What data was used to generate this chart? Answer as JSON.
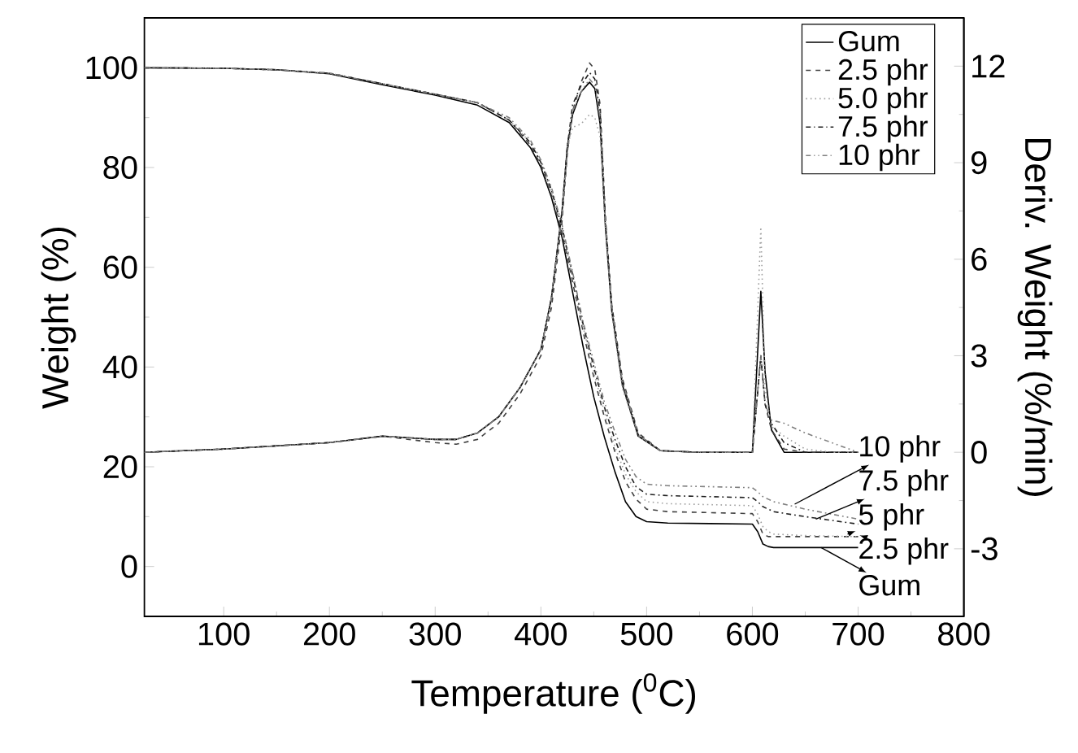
{
  "chart_data": {
    "type": "line",
    "xlabel": "Temperature ($^{0}$C)",
    "ylabel": "Weight (%)",
    "y2label": "Deriv. Weight (%/min)",
    "xlim": [
      25,
      800
    ],
    "xticks": [
      100,
      200,
      300,
      400,
      500,
      600,
      700,
      800
    ],
    "ylim": [
      -10,
      110
    ],
    "yticks": [
      0,
      20,
      40,
      60,
      80,
      100
    ],
    "y2lim": [
      -5.1,
      13.5
    ],
    "y2ticks": [
      -3,
      0,
      3,
      6,
      9,
      12
    ],
    "legend": "top right",
    "marker": "none",
    "series": [
      {
        "name": "Gum",
        "color": "#000000",
        "line_style": "solid",
        "x": [
          25,
          100,
          150,
          200,
          250,
          300,
          340,
          370,
          390,
          400,
          410,
          420,
          430,
          440,
          450,
          460,
          470,
          480,
          490,
          500,
          520,
          560,
          600,
          605,
          610,
          615,
          620,
          650,
          700
        ],
        "values": [
          100,
          99.9,
          99.6,
          98.8,
          96.6,
          94.5,
          92.5,
          89,
          84,
          80,
          74,
          66,
          55,
          44,
          34,
          26,
          19,
          13,
          10,
          9,
          8.7,
          8.6,
          8.5,
          7,
          4.5,
          4,
          3.8,
          3.8,
          3.8
        ]
      },
      {
        "name": "2.5 phr",
        "color": "#404040",
        "line_style": "dashed",
        "x": [
          25,
          100,
          150,
          200,
          250,
          300,
          340,
          370,
          390,
          400,
          410,
          420,
          430,
          440,
          450,
          460,
          470,
          480,
          490,
          500,
          520,
          560,
          600,
          605,
          610,
          615,
          620,
          650,
          700
        ],
        "values": [
          100,
          99.9,
          99.6,
          98.9,
          96.8,
          94.7,
          93,
          89.5,
          84.5,
          80.5,
          74.5,
          67,
          57,
          47,
          38,
          30,
          23,
          17,
          13.5,
          11.5,
          11,
          10.8,
          10.6,
          9,
          6.5,
          6,
          6,
          6,
          6
        ]
      },
      {
        "name": "5.0 phr",
        "color": "#a0a0a0",
        "line_style": "dotted",
        "x": [
          25,
          100,
          150,
          200,
          250,
          300,
          340,
          370,
          390,
          400,
          410,
          420,
          430,
          440,
          450,
          460,
          470,
          480,
          490,
          500,
          520,
          560,
          600,
          605,
          610,
          615,
          620,
          650,
          700
        ],
        "values": [
          100,
          99.9,
          99.6,
          98.9,
          96.8,
          94.7,
          93,
          89.5,
          85,
          81,
          75,
          67.5,
          58,
          48,
          39,
          31,
          24,
          18.5,
          15,
          13,
          12.6,
          12.4,
          12.2,
          10.5,
          8,
          7,
          6.5,
          6.2,
          6
        ]
      },
      {
        "name": "7.5 phr",
        "color": "#202020",
        "line_style": "dashdot",
        "x": [
          25,
          100,
          150,
          200,
          250,
          300,
          340,
          370,
          390,
          400,
          410,
          420,
          430,
          440,
          450,
          460,
          470,
          480,
          490,
          500,
          520,
          560,
          600,
          605,
          610,
          615,
          620,
          650,
          700
        ],
        "values": [
          100,
          99.9,
          99.6,
          98.9,
          96.8,
          94.7,
          93,
          89.5,
          85,
          81,
          75.5,
          68,
          58.5,
          48.5,
          40,
          32,
          25.5,
          20,
          16,
          14.5,
          14.2,
          14,
          13.8,
          13,
          12,
          11.5,
          11,
          10,
          8.5
        ]
      },
      {
        "name": "10 phr",
        "color": "#808080",
        "line_style": "dashdotdot",
        "x": [
          25,
          100,
          150,
          200,
          250,
          300,
          340,
          370,
          390,
          400,
          410,
          420,
          430,
          440,
          450,
          460,
          470,
          480,
          490,
          500,
          520,
          560,
          600,
          605,
          610,
          615,
          620,
          650,
          700
        ],
        "values": [
          100,
          99.9,
          99.6,
          98.9,
          96.8,
          94.7,
          93,
          90,
          85.5,
          81.5,
          76,
          68.5,
          59,
          49,
          41,
          33,
          27,
          21.5,
          18,
          16.5,
          16.2,
          16,
          15.8,
          15,
          14,
          13.5,
          13,
          11.5,
          9.5
        ]
      },
      {
        "axis": "y2",
        "color": "#000000",
        "line_style": "solid",
        "x": [
          25,
          100,
          200,
          250,
          300,
          320,
          340,
          360,
          380,
          400,
          410,
          420,
          425,
          430,
          438,
          446,
          451,
          456,
          461,
          467,
          477,
          492,
          513,
          550,
          600,
          604,
          608,
          612,
          618,
          630,
          650,
          675,
          700
        ],
        "values": [
          0,
          0.1,
          0.3,
          0.5,
          0.4,
          0.4,
          0.6,
          1.1,
          2.0,
          3.2,
          4.8,
          7.5,
          9.5,
          10.5,
          11.2,
          11.5,
          11.3,
          10.2,
          7,
          4.4,
          2.1,
          0.5,
          0.05,
          0,
          0,
          2.5,
          5,
          2.5,
          0.7,
          0,
          0,
          0,
          0
        ]
      },
      {
        "axis": "y2",
        "color": "#404040",
        "line_style": "dashed",
        "x": [
          25,
          100,
          200,
          250,
          300,
          320,
          340,
          360,
          380,
          400,
          410,
          420,
          425,
          430,
          438,
          446,
          451,
          456,
          461,
          467,
          477,
          492,
          513,
          550,
          600,
          604,
          608,
          612,
          618,
          630,
          650,
          675,
          700
        ],
        "values": [
          0,
          0.1,
          0.3,
          0.5,
          0.3,
          0.25,
          0.4,
          0.9,
          1.8,
          3.0,
          4.5,
          7.2,
          9.3,
          10.6,
          11.5,
          12.1,
          11.9,
          10.8,
          7.3,
          4.6,
          2.3,
          0.6,
          0.05,
          0,
          0,
          1.5,
          3,
          1.5,
          0.7,
          0.1,
          0,
          0,
          0
        ]
      },
      {
        "axis": "y2",
        "color": "#a0a0a0",
        "line_style": "dotted",
        "x": [
          25,
          100,
          200,
          250,
          300,
          320,
          340,
          360,
          380,
          400,
          410,
          420,
          425,
          430,
          438,
          446,
          451,
          456,
          461,
          467,
          477,
          492,
          513,
          550,
          600,
          604,
          608,
          612,
          618,
          630,
          650,
          675,
          700
        ],
        "values": [
          0,
          0.1,
          0.3,
          0.5,
          0.4,
          0.4,
          0.6,
          1.1,
          2.0,
          3.2,
          4.8,
          7.5,
          9.5,
          10.1,
          10.2,
          10.5,
          10.4,
          9.8,
          7,
          4.3,
          2.0,
          0.5,
          0.05,
          0,
          0,
          3.5,
          7,
          2,
          0.8,
          0.5,
          0.1,
          0,
          0
        ]
      },
      {
        "axis": "y2",
        "color": "#202020",
        "line_style": "dashdot",
        "x": [
          25,
          100,
          200,
          250,
          300,
          320,
          340,
          360,
          380,
          400,
          410,
          420,
          425,
          430,
          438,
          446,
          451,
          456,
          461,
          467,
          477,
          492,
          513,
          550,
          600,
          604,
          608,
          612,
          618,
          630,
          650,
          675,
          700
        ],
        "values": [
          0,
          0.1,
          0.3,
          0.5,
          0.4,
          0.4,
          0.6,
          1.1,
          2.0,
          3.2,
          4.8,
          7.5,
          9.5,
          10.8,
          11.4,
          11.8,
          11.6,
          10.6,
          7.2,
          4.5,
          2.2,
          0.55,
          0.05,
          0,
          0,
          1.5,
          3,
          1.5,
          0.9,
          0.3,
          0,
          0,
          0
        ]
      },
      {
        "axis": "y2",
        "color": "#808080",
        "line_style": "dashdotdot",
        "x": [
          25,
          100,
          200,
          250,
          300,
          320,
          340,
          360,
          380,
          400,
          410,
          420,
          425,
          430,
          438,
          446,
          451,
          456,
          461,
          467,
          477,
          492,
          513,
          550,
          600,
          604,
          608,
          612,
          618,
          630,
          650,
          675,
          700
        ],
        "values": [
          0,
          0.1,
          0.3,
          0.5,
          0.4,
          0.4,
          0.6,
          1.1,
          2.0,
          3.2,
          4.8,
          7.4,
          9.3,
          10.6,
          11.2,
          11.6,
          11.4,
          10.4,
          7.1,
          4.5,
          2.2,
          0.55,
          0.05,
          0,
          0,
          1.5,
          3,
          1.5,
          1.0,
          0.9,
          0.6,
          0.3,
          0
        ]
      }
    ],
    "annotations": [
      {
        "text": "10 phr",
        "x": 640,
        "y": 12.5
      },
      {
        "text": "7.5 phr",
        "x": 660,
        "y": 9.5
      },
      {
        "text": "5 phr",
        "x": 690,
        "y": 6.5
      },
      {
        "text": "2.5 phr",
        "x": 705,
        "y": 6
      },
      {
        "text": "Gum",
        "x": 665,
        "y": 3.8
      }
    ]
  }
}
